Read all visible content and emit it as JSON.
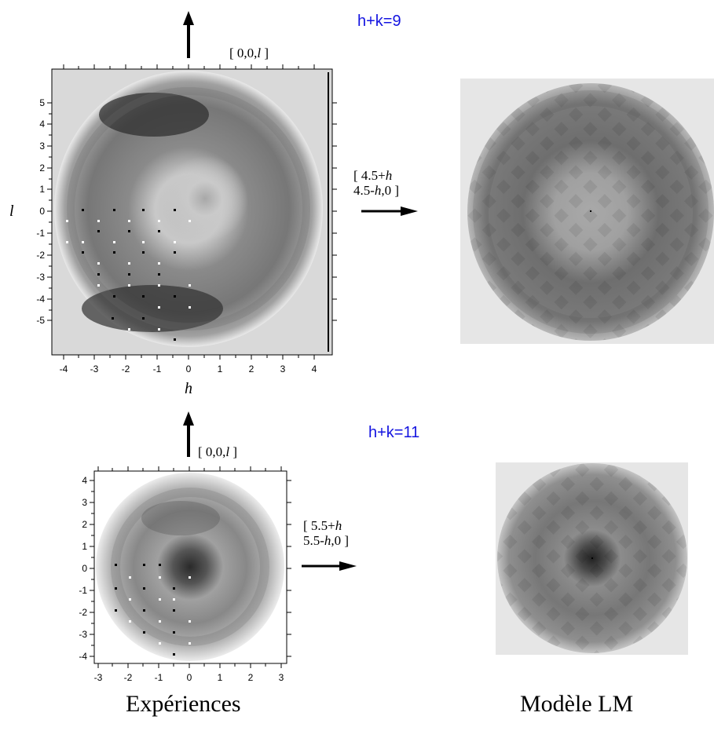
{
  "panels": [
    {
      "id": "p9",
      "condition": "h+k=9",
      "vertical_axis_label": "[ 0,0,",
      "vertical_axis_var": "l",
      "vertical_axis_close": " ]",
      "horizontal_vector_line1": "[ 4.5+",
      "horizontal_vector_line1_var": "h",
      "horizontal_vector_line2": "4.5-",
      "horizontal_vector_line2_var": "h",
      "horizontal_vector_line2_tail": ",0 ]",
      "x_label": "h",
      "y_label": "l",
      "x_ticks": [
        "-4",
        "-3",
        "-2",
        "-1",
        "0",
        "1",
        "2",
        "3",
        "4"
      ],
      "y_ticks": [
        "5",
        "4",
        "3",
        "2",
        "1",
        "0",
        "-1",
        "-2",
        "-3",
        "-4",
        "-5"
      ]
    },
    {
      "id": "p11",
      "condition": "h+k=11",
      "vertical_axis_label": "[ 0,0,",
      "vertical_axis_var": "l",
      "vertical_axis_close": " ]",
      "horizontal_vector_line1": "[ 5.5+",
      "horizontal_vector_line1_var": "h",
      "horizontal_vector_line2": "5.5-",
      "horizontal_vector_line2_var": "h",
      "horizontal_vector_line2_tail": ",0 ]",
      "x_ticks": [
        "-3",
        "-2",
        "-1",
        "0",
        "1",
        "2",
        "3"
      ],
      "y_ticks": [
        "4",
        "3",
        "2",
        "1",
        "0",
        "-1",
        "-2",
        "-3",
        "-4"
      ]
    }
  ],
  "captions": {
    "left": "Expériences",
    "right": "Modèle LM"
  },
  "colors": {
    "condition_text": "#1414e0",
    "background_panel": "#d9d9d9",
    "model_background": "#e6e6e6"
  }
}
